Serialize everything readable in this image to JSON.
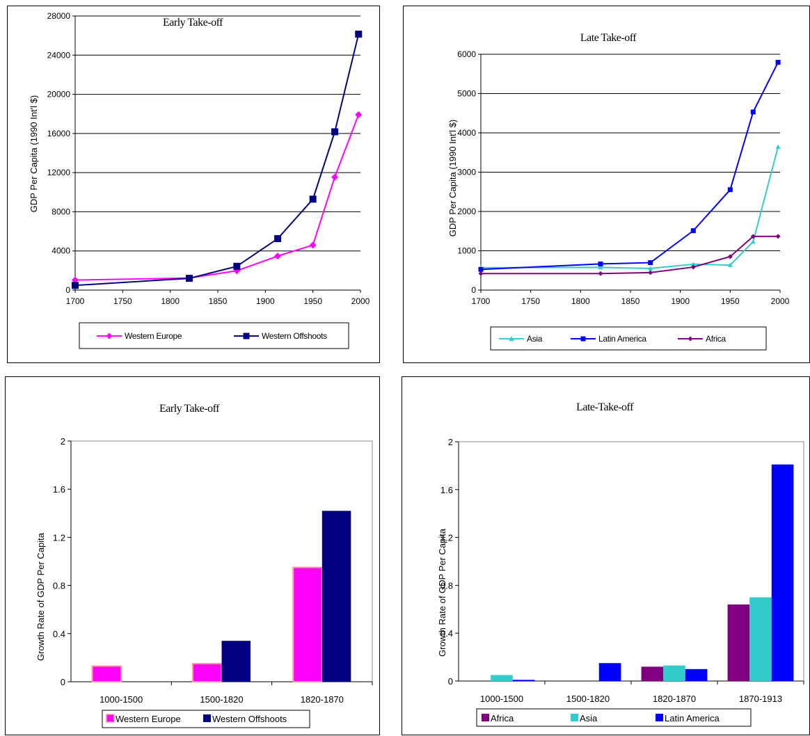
{
  "chart_data": [
    {
      "id": "early-line",
      "type": "line",
      "title": "Early Take-off",
      "xlabel": "",
      "ylabel": "GDP Per Capita (1990 Int'l $)",
      "xlim": [
        1700,
        2000
      ],
      "ylim": [
        0,
        28000
      ],
      "xticks": [
        1700,
        1750,
        1800,
        1850,
        1900,
        1950,
        2000
      ],
      "yticks": [
        0,
        4000,
        8000,
        12000,
        16000,
        20000,
        24000,
        28000
      ],
      "grid": "horizontal",
      "legend_position": "bottom",
      "series": [
        {
          "name": "Western Europe",
          "color": "#ff00ff",
          "marker": "diamond",
          "x": [
            1700,
            1820,
            1870,
            1913,
            1950,
            1973,
            1998
          ],
          "y": [
            1024,
            1232,
            1974,
            3473,
            4594,
            11534,
            17921
          ]
        },
        {
          "name": "Western Offshoots",
          "color": "#000080",
          "marker": "square",
          "x": [
            1700,
            1820,
            1870,
            1913,
            1950,
            1973,
            1998
          ],
          "y": [
            476,
            1201,
            2431,
            5257,
            9288,
            16172,
            26146
          ]
        }
      ]
    },
    {
      "id": "late-line",
      "type": "line",
      "title": "Late Take-off",
      "xlabel": "",
      "ylabel": "GDP Per Capita (1990 Int'l $)",
      "xlim": [
        1700,
        2000
      ],
      "ylim": [
        0,
        6000
      ],
      "xticks": [
        1700,
        1750,
        1800,
        1850,
        1900,
        1950,
        2000
      ],
      "yticks": [
        0,
        1000,
        2000,
        3000,
        4000,
        5000,
        6000
      ],
      "grid": "horizontal",
      "legend_position": "bottom",
      "series": [
        {
          "name": "Asia",
          "color": "#33cccc",
          "marker": "triangle",
          "x": [
            1700,
            1820,
            1870,
            1913,
            1950,
            1973,
            1998
          ],
          "y": [
            571,
            577,
            550,
            658,
            635,
            1231,
            3645
          ]
        },
        {
          "name": "Latin America",
          "color": "#0000ff",
          "marker": "square",
          "x": [
            1700,
            1820,
            1870,
            1913,
            1950,
            1973,
            1998
          ],
          "y": [
            527,
            665,
            698,
            1511,
            2554,
            4531,
            5795
          ]
        },
        {
          "name": "Africa",
          "color": "#800080",
          "marker": "diamond",
          "x": [
            1700,
            1820,
            1870,
            1913,
            1950,
            1973,
            1998
          ],
          "y": [
            421,
            420,
            444,
            585,
            852,
            1365,
            1368
          ]
        }
      ]
    },
    {
      "id": "early-bar",
      "type": "bar",
      "title": "Early Take-off",
      "xlabel": "",
      "ylabel": "Growth Rate of GDP Per Capita",
      "ylim": [
        0,
        2
      ],
      "yticks": [
        "0",
        "0.4",
        "0.8",
        "1.2",
        "1.6",
        "2"
      ],
      "grid": "none",
      "legend_position": "bottom",
      "categories": [
        "1000-1500",
        "1500-1820",
        "1820-1870"
      ],
      "series": [
        {
          "name": "Western Europe",
          "color": "#ff00ff",
          "border": "#ff9999",
          "values": [
            0.13,
            0.15,
            0.95
          ]
        },
        {
          "name": "Western Offshoots",
          "color": "#000080",
          "border": "#000080",
          "values": [
            0.0,
            0.34,
            1.42
          ]
        }
      ]
    },
    {
      "id": "late-bar",
      "type": "bar",
      "title": "Late-Take-off",
      "xlabel": "",
      "ylabel": "Growth Rate of GDP Per Capita",
      "ylim": [
        0,
        2
      ],
      "yticks": [
        "0",
        "0.4",
        "0.8",
        "1.2",
        "1.6",
        "2"
      ],
      "grid": "none",
      "legend_position": "bottom",
      "categories": [
        "1000-1500",
        "1500-1820",
        "1820-1870",
        "1870-1913"
      ],
      "series": [
        {
          "name": "Africa",
          "color": "#800080",
          "border": "#800080",
          "values": [
            0.0,
            0.0,
            0.12,
            0.64
          ]
        },
        {
          "name": "Asia",
          "color": "#33cccc",
          "border": "#33cccc",
          "values": [
            0.05,
            0.0,
            0.13,
            0.7
          ]
        },
        {
          "name": "Latin America",
          "color": "#0000ff",
          "border": "#0000ff",
          "values": [
            0.01,
            0.15,
            0.1,
            1.81
          ]
        }
      ]
    }
  ]
}
